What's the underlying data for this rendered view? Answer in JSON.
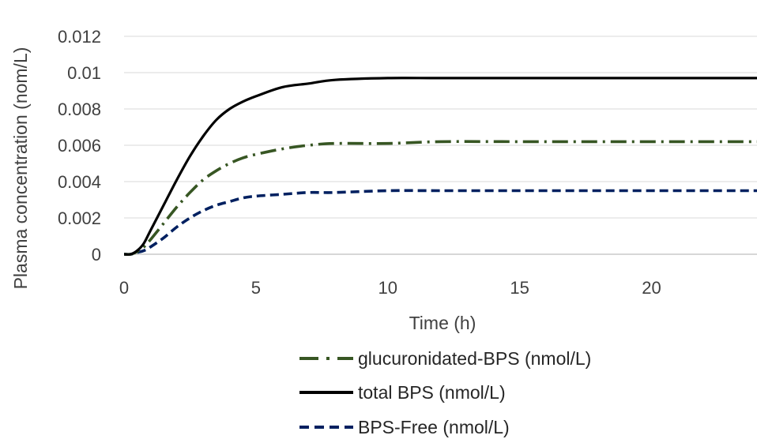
{
  "chart_data": {
    "type": "line",
    "title": "",
    "xlabel": "Time (h)",
    "ylabel": "Plasma concentration (nom/L)",
    "xlim": [
      0,
      24
    ],
    "ylim": [
      0,
      0.012
    ],
    "xticks": [
      "0",
      "5",
      "10",
      "15",
      "20"
    ],
    "yticks": [
      "0",
      "0.002",
      "0.004",
      "0.006",
      "0.008",
      "0.01",
      "0.012"
    ],
    "grid": true,
    "legend_position": "bottom",
    "series": [
      {
        "name": "glucuronidated-BPS (nmol/L)",
        "color": "#375623",
        "dash": "dash-dot",
        "x": [
          0,
          0.25,
          0.5,
          0.75,
          1,
          1.5,
          2,
          2.5,
          3,
          3.5,
          4,
          4.5,
          5,
          6,
          7,
          8,
          10,
          12,
          15,
          18,
          21,
          24
        ],
        "y": [
          0,
          0.0,
          0.00015,
          0.0004,
          0.0008,
          0.0017,
          0.0026,
          0.0034,
          0.0041,
          0.0046,
          0.005,
          0.0053,
          0.0055,
          0.0058,
          0.006,
          0.0061,
          0.0061,
          0.0062,
          0.0062,
          0.0062,
          0.0062,
          0.0062
        ]
      },
      {
        "name": "total BPS  (nmol/L)",
        "color": "#000000",
        "dash": "solid",
        "x": [
          0,
          0.25,
          0.5,
          0.75,
          1,
          1.5,
          2,
          2.5,
          3,
          3.5,
          4,
          4.5,
          5,
          6,
          7,
          8,
          10,
          12,
          15,
          18,
          21,
          24
        ],
        "y": [
          0,
          0.0,
          0.0002,
          0.0006,
          0.0013,
          0.0027,
          0.0041,
          0.0054,
          0.0065,
          0.0074,
          0.008,
          0.0084,
          0.0087,
          0.0092,
          0.0094,
          0.0096,
          0.0097,
          0.0097,
          0.0097,
          0.0097,
          0.0097,
          0.0097
        ]
      },
      {
        "name": "BPS-Free  (nmol/L)",
        "color": "#002060",
        "dash": "dash",
        "x": [
          0,
          0.25,
          0.5,
          0.75,
          1,
          1.5,
          2,
          2.5,
          3,
          3.5,
          4,
          4.5,
          5,
          6,
          7,
          8,
          10,
          12,
          15,
          18,
          21,
          24
        ],
        "y": [
          0,
          0.0,
          0.0001,
          0.0002,
          0.0004,
          0.0009,
          0.0015,
          0.002,
          0.0024,
          0.0027,
          0.0029,
          0.0031,
          0.0032,
          0.0033,
          0.0034,
          0.0034,
          0.0035,
          0.0035,
          0.0035,
          0.0035,
          0.0035,
          0.0035
        ]
      }
    ]
  }
}
